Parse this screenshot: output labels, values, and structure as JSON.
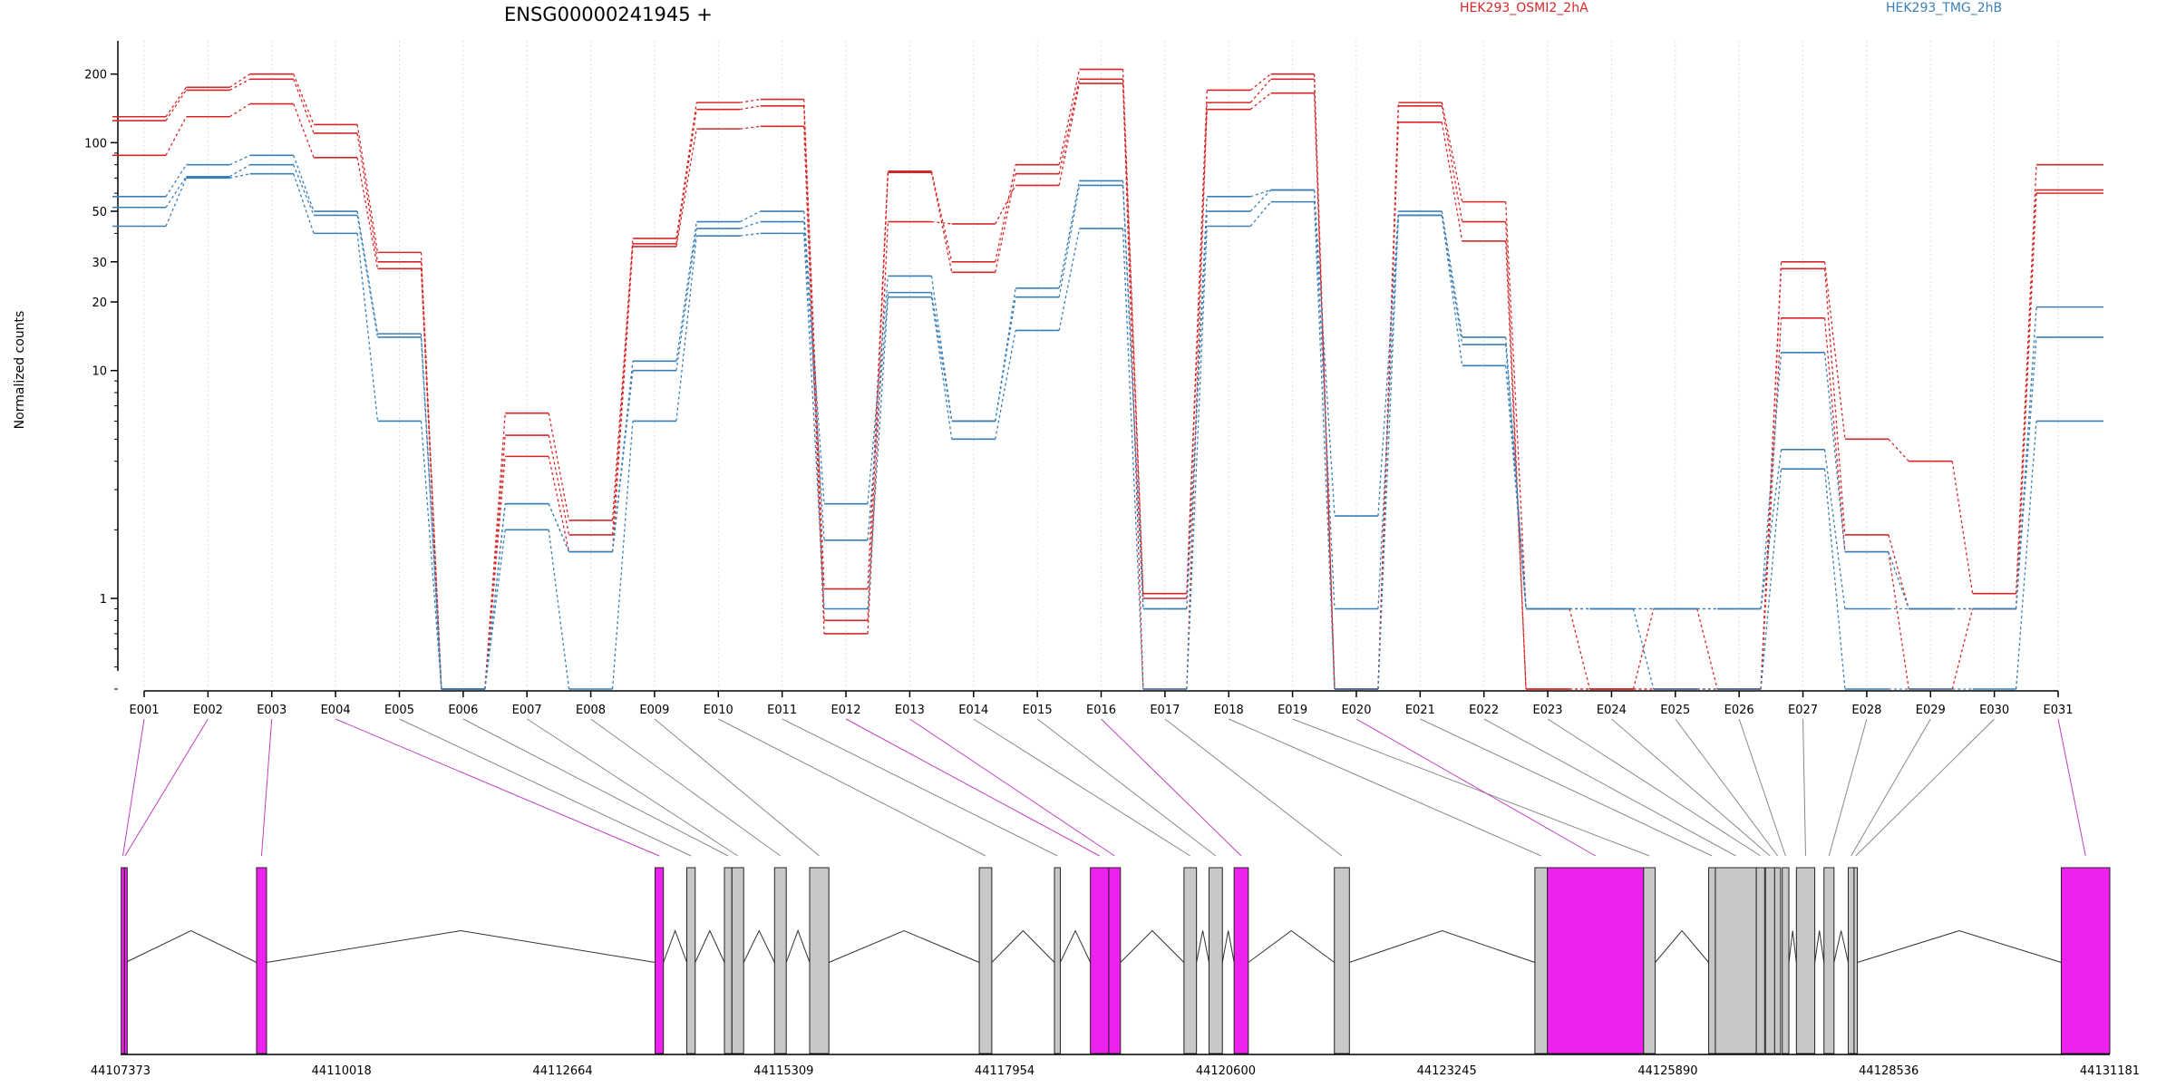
{
  "chart_data": {
    "type": "line",
    "title": "ENSG00000241945 +",
    "ylabel": "Normalized counts",
    "yscale": "log",
    "ylim": [
      0.4,
      280
    ],
    "y_ticks": [
      1,
      10,
      20,
      30,
      50,
      100,
      200
    ],
    "y_tick_labels": [
      "1",
      "10",
      "20",
      "30",
      "50",
      "100",
      "200"
    ],
    "legend": {
      "position": "top-right",
      "entries": [
        "HEK293_OSMI2_2hA",
        "HEK293_TMG_2hB"
      ]
    },
    "colors": {
      "HEK293_OSMI2_2hA": "#d62728",
      "HEK293_TMG_2hB": "#3a7fb5",
      "exon_highlight": "#ee22ee",
      "exon_plain": "#c8c8c8"
    },
    "grid": "vertical dotted lines at each exon",
    "categories": [
      "E001",
      "E002",
      "E003",
      "E004",
      "E005",
      "E006",
      "E007",
      "E008",
      "E009",
      "E010",
      "E011",
      "E012",
      "E013",
      "E014",
      "E015",
      "E016",
      "E017",
      "E018",
      "E019",
      "E020",
      "E021",
      "E022",
      "E023",
      "E024",
      "E025",
      "E026",
      "E027",
      "E028",
      "E029",
      "E030",
      "E031"
    ],
    "series": [
      {
        "group": "HEK293_OSMI2_2hA",
        "values": [
          130,
          175,
          200,
          120,
          33,
          0.4,
          6.5,
          2.2,
          38,
          150,
          155,
          1.1,
          75,
          30,
          80,
          210,
          1.05,
          170,
          200,
          0.4,
          150,
          55,
          0.9,
          0.4,
          0.4,
          0.4,
          30,
          5,
          4,
          1.05,
          80
        ]
      },
      {
        "group": "HEK293_OSMI2_2hA",
        "values": [
          125,
          170,
          190,
          110,
          30,
          0.4,
          5.2,
          1.9,
          36,
          140,
          145,
          0.8,
          74,
          27,
          73,
          190,
          0.4,
          150,
          190,
          0.4,
          145,
          45,
          0.4,
          0.4,
          0.4,
          0.4,
          28,
          1.9,
          0.9,
          0.9,
          62
        ]
      },
      {
        "group": "HEK293_OSMI2_2hA",
        "values": [
          88,
          130,
          148,
          86,
          28,
          0.4,
          4.2,
          1.6,
          35,
          115,
          118,
          0.7,
          45,
          44,
          65,
          182,
          1.0,
          140,
          165,
          0.4,
          123,
          37,
          0.4,
          0.4,
          0.9,
          0.4,
          17,
          1.6,
          0.4,
          0.9,
          60
        ]
      },
      {
        "group": "HEK293_TMG_2hB",
        "values": [
          58,
          80,
          88,
          50,
          14.5,
          0.4,
          2.6,
          1.6,
          11,
          45,
          50,
          2.6,
          26,
          6,
          23,
          68,
          0.9,
          58,
          62,
          2.3,
          50,
          14,
          0.9,
          0.9,
          0.9,
          0.9,
          12,
          1.6,
          0.9,
          0.9,
          19
        ]
      },
      {
        "group": "HEK293_TMG_2hB",
        "values": [
          52,
          71,
          80,
          48,
          14,
          0.4,
          2.6,
          1.6,
          10,
          42,
          45,
          1.8,
          22,
          6,
          21,
          65,
          0.9,
          50,
          62,
          0.9,
          48,
          13,
          0.9,
          0.9,
          0.9,
          0.9,
          4.5,
          0.9,
          0.9,
          0.9,
          14
        ]
      },
      {
        "group": "HEK293_TMG_2hB",
        "values": [
          43,
          70,
          73,
          40,
          6,
          0.4,
          2.0,
          0.4,
          6,
          39,
          40,
          0.9,
          21,
          5,
          15,
          42,
          0.4,
          43,
          55,
          0.4,
          48,
          10.5,
          0.9,
          0.9,
          0.4,
          0.4,
          3.7,
          0.4,
          0.4,
          0.4,
          6
        ]
      }
    ],
    "exons_highlighted": [
      "E001",
      "E002",
      "E003",
      "E004",
      "E012",
      "E013",
      "E016",
      "E020",
      "E031"
    ],
    "gene_axis": {
      "ticks": [
        "44107373",
        "44110018",
        "44112664",
        "44115309",
        "44117954",
        "44120600",
        "44123245",
        "44125890",
        "44128536",
        "44131181"
      ],
      "range": [
        44107373,
        44131181
      ]
    },
    "gene_model": [
      {
        "exon": "E001",
        "start": 44107380,
        "end": 44107420
      },
      {
        "exon": "E002",
        "start": 44107420,
        "end": 44107432
      },
      {
        "exon": "E003",
        "start": 44109000,
        "end": 44109120
      },
      {
        "exon": "E004",
        "start": 44113770,
        "end": 44113870
      },
      {
        "exon": "E005",
        "start": 44114150,
        "end": 44114250
      },
      {
        "exon": "E006",
        "start": 44114600,
        "end": 44114690
      },
      {
        "exon": "E007",
        "start": 44114690,
        "end": 44114830
      },
      {
        "exon": "E008",
        "start": 44115200,
        "end": 44115340
      },
      {
        "exon": "E009",
        "start": 44115620,
        "end": 44115850
      },
      {
        "exon": "E010",
        "start": 44117650,
        "end": 44117800
      },
      {
        "exon": "E011",
        "start": 44118550,
        "end": 44118620
      },
      {
        "exon": "E012",
        "start": 44118980,
        "end": 44119200
      },
      {
        "exon": "E013",
        "start": 44119200,
        "end": 44119340
      },
      {
        "exon": "E014",
        "start": 44120100,
        "end": 44120250
      },
      {
        "exon": "E015",
        "start": 44120400,
        "end": 44120560
      },
      {
        "exon": "E016",
        "start": 44120700,
        "end": 44120870
      },
      {
        "exon": "E017",
        "start": 44121900,
        "end": 44122080
      },
      {
        "exon": "E018",
        "start": 44124300,
        "end": 44124450
      },
      {
        "exon": "E019",
        "start": 44125600,
        "end": 44125740
      },
      {
        "exon": "E020",
        "start": 44124450,
        "end": 44125600
      },
      {
        "exon": "E021",
        "start": 44126380,
        "end": 44126460
      },
      {
        "exon": "E022",
        "start": 44126460,
        "end": 44126950
      },
      {
        "exon": "E023",
        "start": 44126950,
        "end": 44127050
      },
      {
        "exon": "E024",
        "start": 44127060,
        "end": 44127170
      },
      {
        "exon": "E025",
        "start": 44127170,
        "end": 44127240
      },
      {
        "exon": "E026",
        "start": 44127260,
        "end": 44127340
      },
      {
        "exon": "E027",
        "start": 44127430,
        "end": 44127650
      },
      {
        "exon": "E028",
        "start": 44127760,
        "end": 44127880
      },
      {
        "exon": "E029",
        "start": 44128050,
        "end": 44128120
      },
      {
        "exon": "E030",
        "start": 44128120,
        "end": 44128160
      },
      {
        "exon": "E031",
        "start": 44130600,
        "end": 44131181
      }
    ]
  }
}
